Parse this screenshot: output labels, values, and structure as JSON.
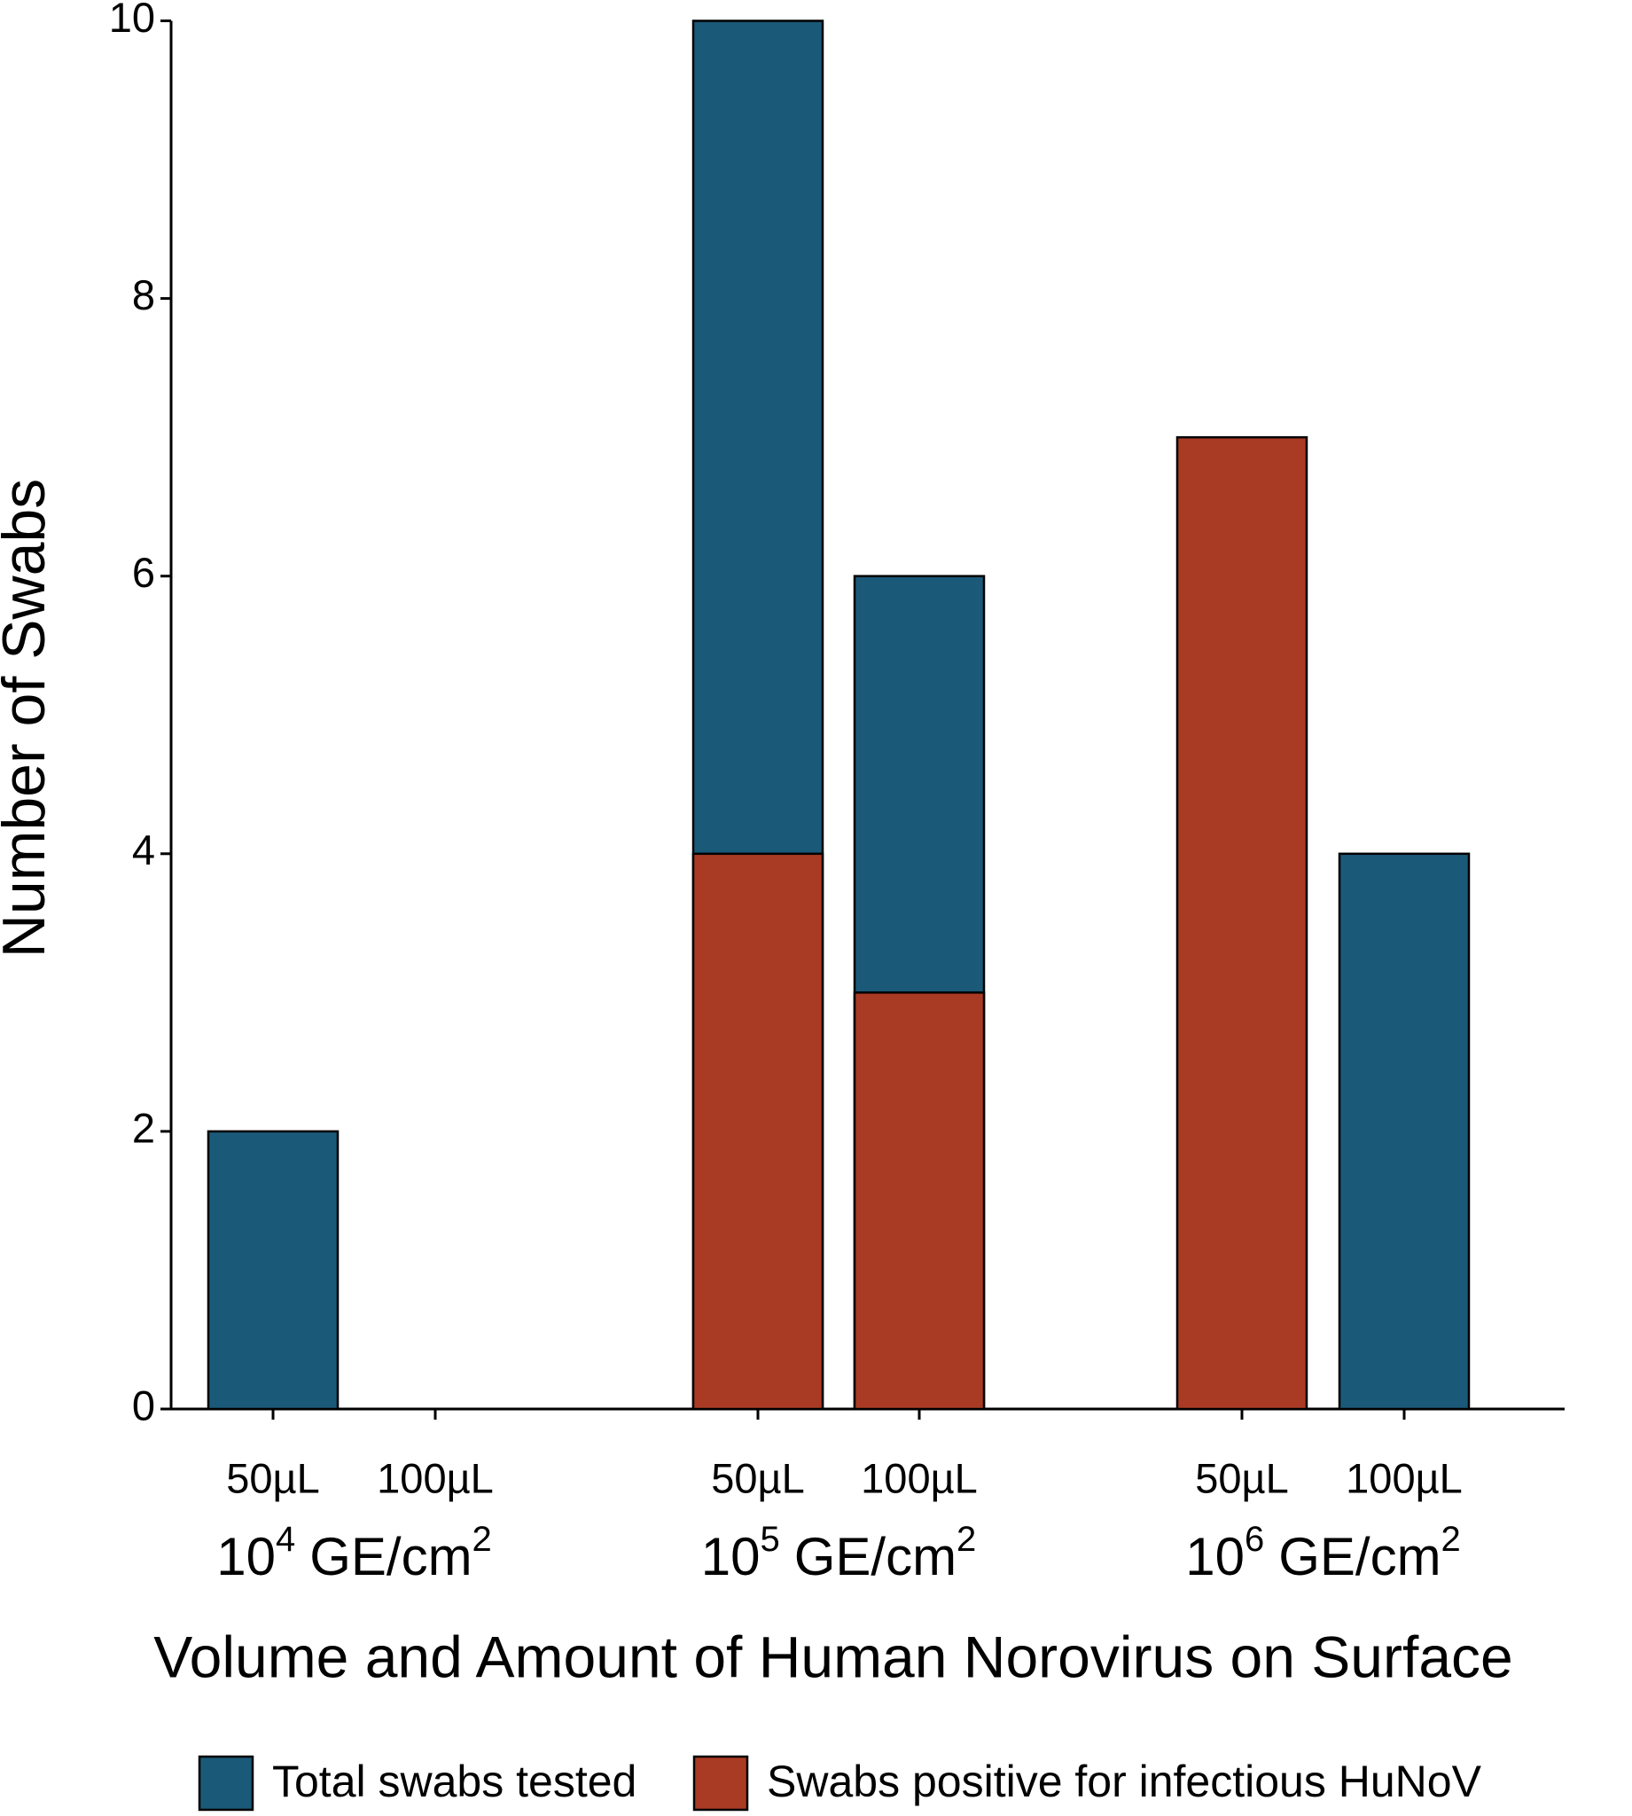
{
  "chart_data": {
    "type": "bar",
    "ylabel": "Number of Swabs",
    "xlabel": "Volume and Amount of Human Norovirus on Surface",
    "categories": [
      "50µL",
      "100µL",
      "50µL",
      "100µL",
      "50µL",
      "100µL"
    ],
    "groups": [
      [
        "10",
        "4",
        "GE/cm",
        "2"
      ],
      [
        "10",
        "5",
        "GE/cm",
        "2"
      ],
      [
        "10",
        "6",
        "GE/cm",
        "2"
      ]
    ],
    "series": [
      {
        "name": "Total swabs tested",
        "color": "#1b5978",
        "values": [
          2,
          0,
          10,
          6,
          null,
          4
        ]
      },
      {
        "name": "Swabs positive for infectious HuNoV",
        "color": "#a93a23",
        "values": [
          0,
          0,
          4,
          3,
          7,
          0
        ]
      }
    ],
    "ylim": [
      0,
      10
    ],
    "yticks": [
      0,
      2,
      4,
      6,
      8,
      10
    ]
  }
}
